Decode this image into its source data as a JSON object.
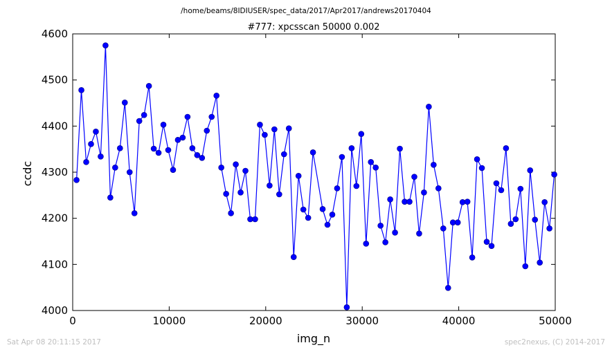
{
  "page": {
    "suptitle": "/home/beams/8IDIUSER/spec_data/2017/Apr2017/andrews20170404",
    "footer_left": "Sat Apr 08 20:11:15 2017",
    "footer_right": "spec2nexus, (C) 2014-2017"
  },
  "chart_data": {
    "type": "line",
    "title": "#777: xpcsscan 50000 0.002",
    "xlabel": "img_n",
    "ylabel": "ccdc",
    "xlim": [
      0,
      50000
    ],
    "ylim": [
      4000,
      4600
    ],
    "xticks": [
      0,
      10000,
      20000,
      30000,
      40000,
      50000
    ],
    "yticks": [
      4000,
      4100,
      4200,
      4300,
      4400,
      4500,
      4600
    ],
    "grid": false,
    "colors": {
      "line": "#0000ff",
      "marker": "#0000ff",
      "marker_edge": "#000080"
    },
    "series": [
      {
        "x": [
          400,
          900,
          1400,
          1900,
          2400,
          2900,
          3400,
          3900,
          4400,
          4900,
          5400,
          5900,
          6400,
          6900,
          7400,
          7900,
          8400,
          8900,
          9400,
          9900,
          10400,
          10900,
          11400,
          11900,
          12400,
          12900,
          13400,
          13900,
          14400,
          14900,
          15400,
          15900,
          16400,
          16900,
          17400,
          17900,
          18400,
          18900,
          19400,
          19900,
          20400,
          20900,
          21400,
          21900,
          22400,
          22900,
          23400,
          23900,
          24400,
          24900,
          25900,
          26400,
          26900,
          27400,
          27900,
          28400,
          28900,
          29400,
          29900,
          30400,
          30900,
          31400,
          31900,
          32400,
          32900,
          33400,
          33900,
          34400,
          34900,
          35400,
          35900,
          36400,
          36900,
          37400,
          37900,
          38400,
          38900,
          39400,
          39900,
          40400,
          40900,
          41400,
          41900,
          42400,
          42900,
          43400,
          43900,
          44400,
          44900,
          45400,
          45900,
          46400,
          46900,
          47400,
          47900,
          48400,
          48900,
          49400,
          49900
        ],
        "y": [
          4283,
          4478,
          4322,
          4361,
          4388,
          4334,
          4575,
          4245,
          4310,
          4352,
          4451,
          4300,
          4211,
          4411,
          4424,
          4487,
          4351,
          4342,
          4403,
          4348,
          4305,
          4370,
          4375,
          4420,
          4352,
          4337,
          4331,
          4390,
          4420,
          4466,
          4310,
          4253,
          4211,
          4317,
          4256,
          4303,
          4198,
          4198,
          4403,
          4381,
          4271,
          4393,
          4252,
          4339,
          4395,
          4116,
          4292,
          4219,
          4201,
          4343,
          4220,
          4186,
          4208,
          4265,
          4333,
          4007,
          4352,
          4270,
          4383,
          4145,
          4322,
          4310,
          4184,
          4148,
          4241,
          4169,
          4351,
          4236,
          4236,
          4290,
          4167,
          4256,
          4442,
          4316,
          4265,
          4178,
          4049,
          4191,
          4191,
          4235,
          4236,
          4115,
          4328,
          4309,
          4149,
          4140,
          4276,
          4261,
          4352,
          4188,
          4198,
          4264,
          4096,
          4304,
          4197,
          4104,
          4235,
          4178,
          4295
        ]
      }
    ]
  }
}
